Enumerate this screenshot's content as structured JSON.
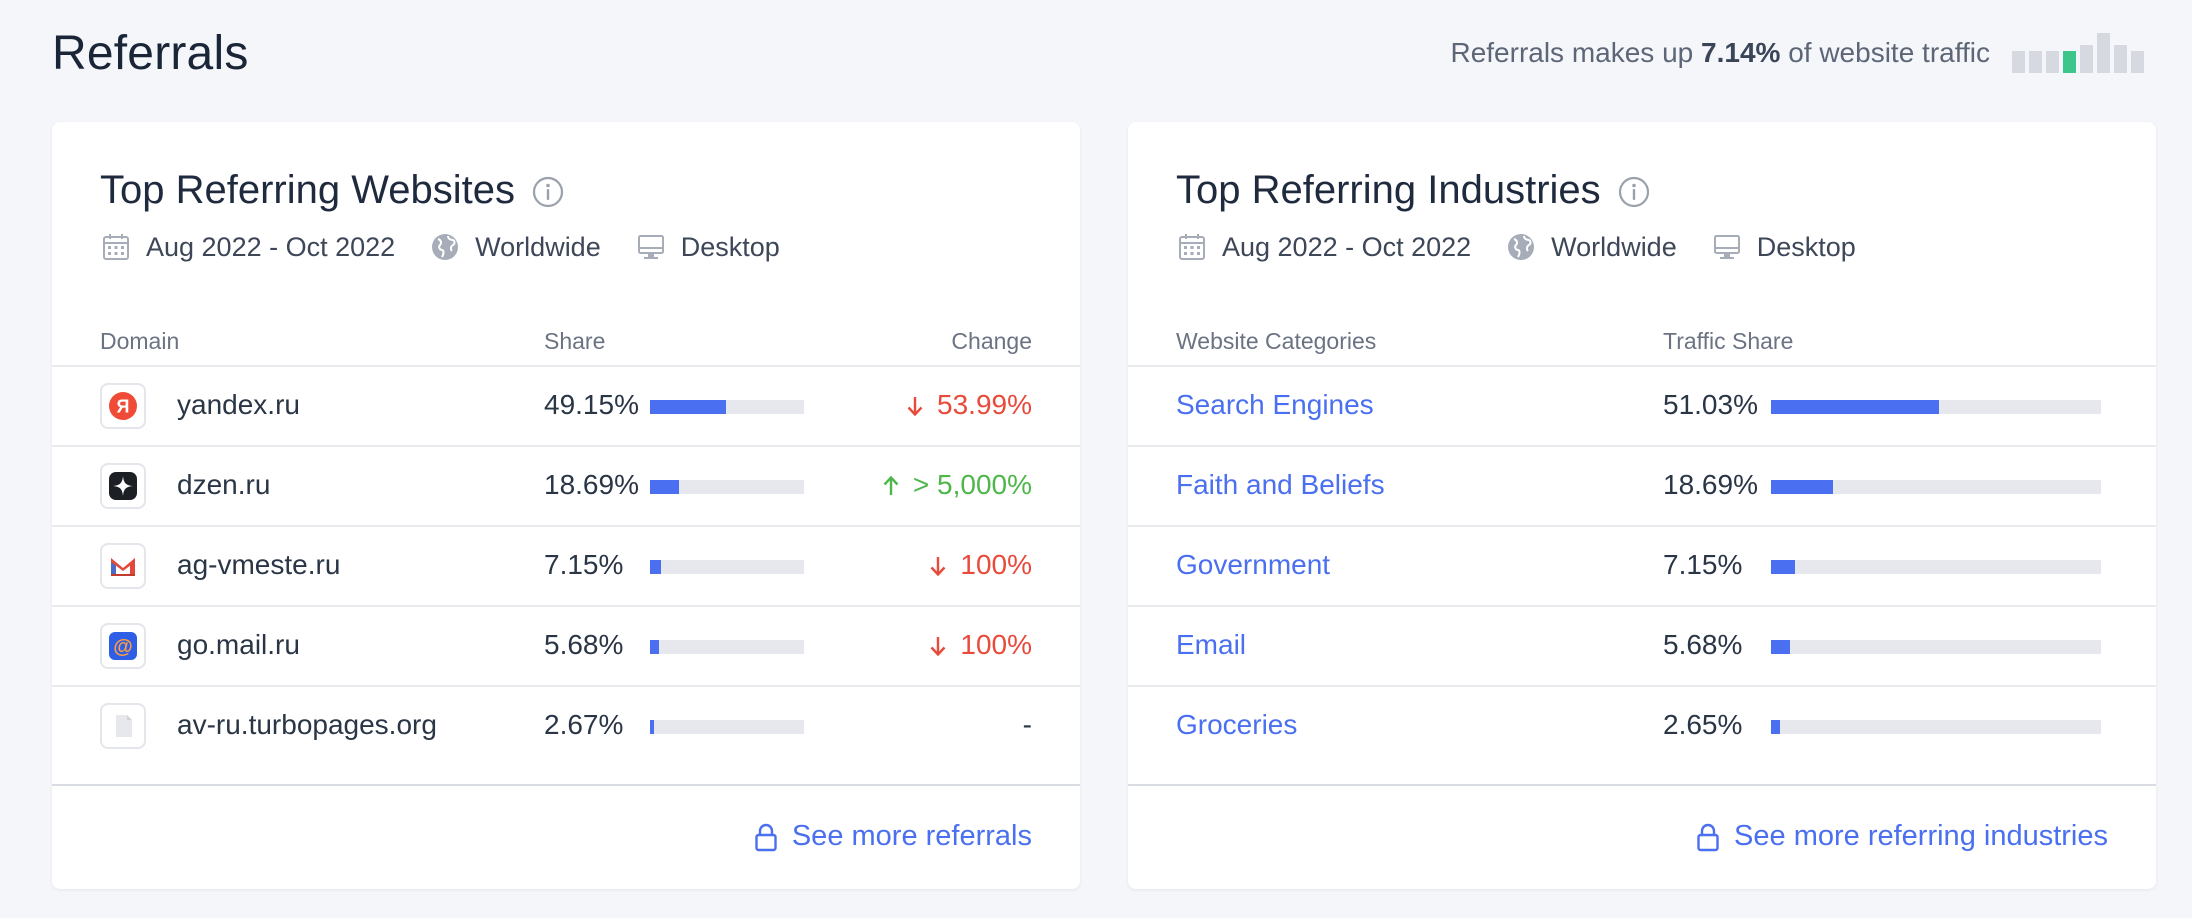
{
  "page": {
    "title": "Referrals",
    "summary_prefix": "Referrals makes up ",
    "summary_value": "7.14%",
    "summary_suffix": " of website traffic",
    "mini_chart_levels": [
      0.55,
      0.55,
      0.55,
      0.55,
      0.7,
      1.0,
      0.7,
      0.55
    ],
    "mini_chart_active_index": 3
  },
  "colors": {
    "accent": "#4a6ff0",
    "negative": "#e84a3b",
    "positive": "#4fb64a",
    "mini_active": "#3ec58b"
  },
  "websites": {
    "title": "Top Referring Websites",
    "filters": {
      "date_icon": "calendar-icon",
      "date": "Aug 2022 - Oct 2022",
      "region_icon": "globe-icon",
      "region": "Worldwide",
      "device_icon": "desktop-icon",
      "device": "Desktop"
    },
    "columns": {
      "domain": "Domain",
      "share": "Share",
      "change": "Change"
    },
    "rows": [
      {
        "icon": "yandex-favicon",
        "domain": "yandex.ru",
        "share": "49.15%",
        "share_value": 49.15,
        "change": "53.99%",
        "direction": "down"
      },
      {
        "icon": "dzen-favicon",
        "domain": "dzen.ru",
        "share": "18.69%",
        "share_value": 18.69,
        "change": "> 5,000%",
        "direction": "up"
      },
      {
        "icon": "gmail-favicon",
        "domain": "ag-vmeste.ru",
        "share": "7.15%",
        "share_value": 7.15,
        "change": "100%",
        "direction": "down"
      },
      {
        "icon": "mailru-favicon",
        "domain": "go.mail.ru",
        "share": "5.68%",
        "share_value": 5.68,
        "change": "100%",
        "direction": "down"
      },
      {
        "icon": "generic-page-favicon",
        "domain": "av-ru.turbopages.org",
        "share": "2.67%",
        "share_value": 2.67,
        "change": "-",
        "direction": "none"
      }
    ],
    "see_more": "See more referrals"
  },
  "industries": {
    "title": "Top Referring Industries",
    "filters": {
      "date": "Aug 2022 - Oct 2022",
      "region": "Worldwide",
      "device": "Desktop"
    },
    "columns": {
      "category": "Website Categories",
      "share": "Traffic Share"
    },
    "rows": [
      {
        "category": "Search Engines",
        "share": "51.03%",
        "share_value": 51.03
      },
      {
        "category": "Faith and Beliefs",
        "share": "18.69%",
        "share_value": 18.69
      },
      {
        "category": "Government",
        "share": "7.15%",
        "share_value": 7.15
      },
      {
        "category": "Email",
        "share": "5.68%",
        "share_value": 5.68
      },
      {
        "category": "Groceries",
        "share": "2.65%",
        "share_value": 2.65
      }
    ],
    "see_more": "See more referring industries"
  }
}
